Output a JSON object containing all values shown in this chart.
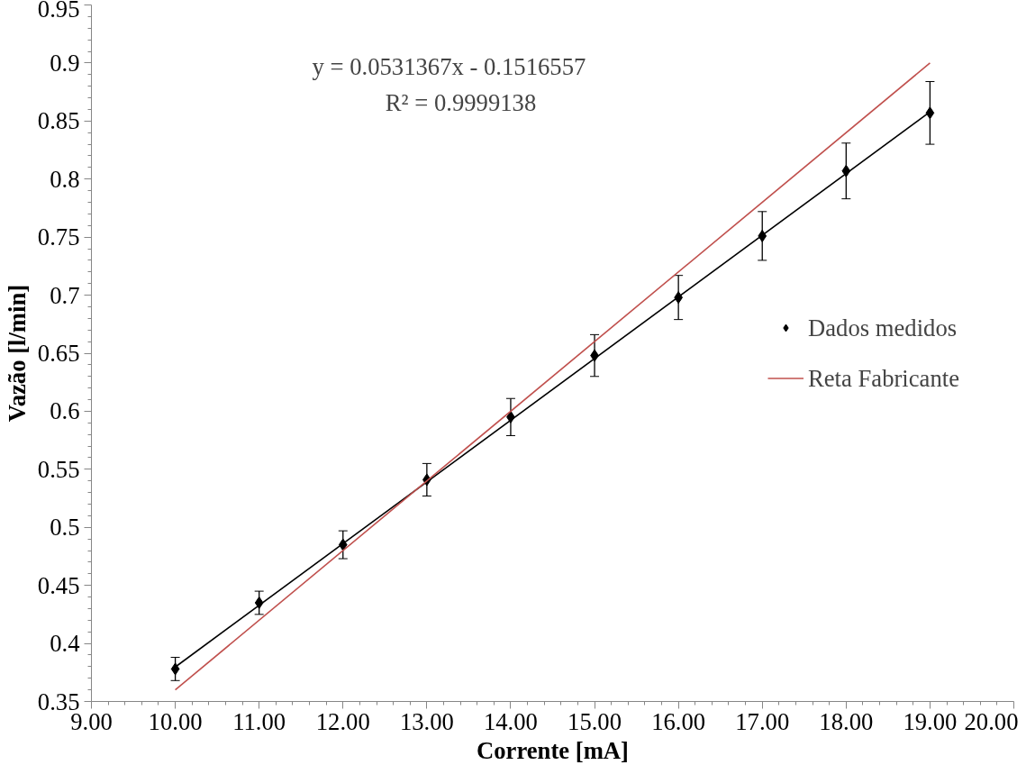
{
  "chart_data": {
    "type": "scatter",
    "xlabel": "Corrente [mA]",
    "ylabel": "Vazão [l/min]",
    "annotations": [
      "y = 0.0531367x - 0.1516557",
      "R² = 0.9999138"
    ],
    "xlim": [
      9,
      20
    ],
    "ylim": [
      0.35,
      0.95
    ],
    "xticks": [
      {
        "value": 9,
        "label": "9.00"
      },
      {
        "value": 10,
        "label": "10.00"
      },
      {
        "value": 11,
        "label": "11.00"
      },
      {
        "value": 12,
        "label": "12.00"
      },
      {
        "value": 13,
        "label": "13.00"
      },
      {
        "value": 14,
        "label": "14.00"
      },
      {
        "value": 15,
        "label": "15.00"
      },
      {
        "value": 16,
        "label": "16.00"
      },
      {
        "value": 17,
        "label": "17.00"
      },
      {
        "value": 18,
        "label": "18.00"
      },
      {
        "value": 19,
        "label": "19.00"
      },
      {
        "value": 20,
        "label": "20.00"
      }
    ],
    "yticks": [
      0.35,
      0.4,
      0.45,
      0.5,
      0.55,
      0.6,
      0.65,
      0.7,
      0.75,
      0.8,
      0.85,
      0.9,
      0.95
    ],
    "grid": false,
    "legend": "right",
    "series": [
      {
        "name": "Dados medidos",
        "marker": "diamond",
        "color": "#000000",
        "x": [
          10,
          11,
          12,
          13,
          14,
          15,
          16,
          17,
          18,
          19
        ],
        "values": [
          0.378,
          0.435,
          0.485,
          0.541,
          0.595,
          0.648,
          0.698,
          0.751,
          0.807,
          0.857
        ],
        "errors": [
          0.01,
          0.01,
          0.012,
          0.014,
          0.016,
          0.018,
          0.019,
          0.021,
          0.024,
          0.027
        ]
      },
      {
        "type": "line",
        "color": "#000000",
        "x": [
          10,
          19
        ],
        "values": [
          0.3797,
          0.8579
        ]
      },
      {
        "name": "Reta Fabricante",
        "type": "line",
        "color": "#c0504d",
        "x": [
          10,
          19
        ],
        "values": [
          0.36,
          0.9
        ]
      }
    ]
  }
}
